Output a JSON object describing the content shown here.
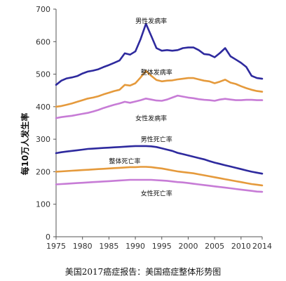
{
  "caption": "美国2017癌症报告：美国癌症整体形势图",
  "chart_data": {
    "type": "line",
    "ylabel": "每10万人发生率",
    "xlabel": "",
    "ylim": [
      0,
      700
    ],
    "xlim": [
      1975,
      2014
    ],
    "x_ticks": [
      1975,
      1980,
      1985,
      1990,
      1995,
      2000,
      2005,
      2010,
      2014
    ],
    "y_ticks": [
      0,
      100,
      200,
      300,
      400,
      500,
      600,
      700
    ],
    "grid": false,
    "legend": "none",
    "x": [
      1975,
      1976,
      1977,
      1978,
      1979,
      1980,
      1981,
      1982,
      1983,
      1984,
      1985,
      1986,
      1987,
      1988,
      1989,
      1990,
      1991,
      1992,
      1993,
      1994,
      1995,
      1996,
      1997,
      1998,
      1999,
      2000,
      2001,
      2002,
      2003,
      2004,
      2005,
      2006,
      2007,
      2008,
      2009,
      2010,
      2011,
      2012,
      2013,
      2014
    ],
    "series": [
      {
        "name": "男性发病率",
        "color": "#2e2a9e",
        "values": [
          467,
          480,
          487,
          490,
          494,
          502,
          508,
          511,
          515,
          522,
          528,
          535,
          542,
          564,
          560,
          570,
          608,
          655,
          618,
          580,
          572,
          574,
          572,
          574,
          580,
          582,
          582,
          574,
          562,
          560,
          552,
          565,
          580,
          555,
          545,
          535,
          522,
          495,
          488,
          486
        ]
      },
      {
        "name": "整体发病率",
        "color": "#e59a3c",
        "values": [
          400,
          402,
          406,
          410,
          415,
          420,
          425,
          428,
          432,
          438,
          443,
          448,
          452,
          467,
          465,
          472,
          490,
          510,
          495,
          482,
          478,
          480,
          481,
          484,
          486,
          488,
          488,
          484,
          480,
          478,
          472,
          477,
          483,
          474,
          470,
          463,
          457,
          452,
          448,
          446
        ]
      },
      {
        "name": "女性发病率",
        "color": "#c77cd6",
        "values": [
          365,
          368,
          370,
          372,
          375,
          378,
          381,
          385,
          390,
          396,
          401,
          406,
          410,
          415,
          412,
          416,
          420,
          425,
          422,
          419,
          418,
          422,
          428,
          434,
          431,
          428,
          426,
          423,
          421,
          420,
          418,
          422,
          424,
          422,
          420,
          420,
          421,
          421,
          420,
          420
        ]
      },
      {
        "name": "男性死亡率",
        "color": "#2e2a9e",
        "values": [
          257,
          260,
          262,
          264,
          266,
          268,
          270,
          271,
          272,
          273,
          274,
          275,
          276,
          277,
          278,
          279,
          279,
          279,
          278,
          276,
          272,
          268,
          264,
          258,
          254,
          250,
          246,
          242,
          238,
          233,
          228,
          224,
          220,
          216,
          212,
          208,
          204,
          200,
          197,
          194
        ]
      },
      {
        "name": "整体死亡率",
        "color": "#e59a3c",
        "values": [
          200,
          201,
          202,
          203,
          204,
          205,
          206,
          207,
          208,
          209,
          210,
          211,
          212,
          213,
          214,
          214,
          215,
          215,
          214,
          212,
          210,
          207,
          204,
          201,
          199,
          197,
          195,
          192,
          189,
          186,
          183,
          180,
          177,
          174,
          171,
          168,
          165,
          162,
          160,
          158
        ]
      },
      {
        "name": "女性死亡率",
        "color": "#c77cd6",
        "values": [
          161,
          162,
          163,
          164,
          165,
          166,
          167,
          168,
          169,
          170,
          171,
          172,
          173,
          174,
          175,
          175,
          175,
          175,
          175,
          174,
          173,
          172,
          170,
          168,
          167,
          165,
          163,
          161,
          159,
          157,
          155,
          153,
          151,
          149,
          147,
          145,
          143,
          141,
          139,
          138
        ]
      }
    ]
  }
}
